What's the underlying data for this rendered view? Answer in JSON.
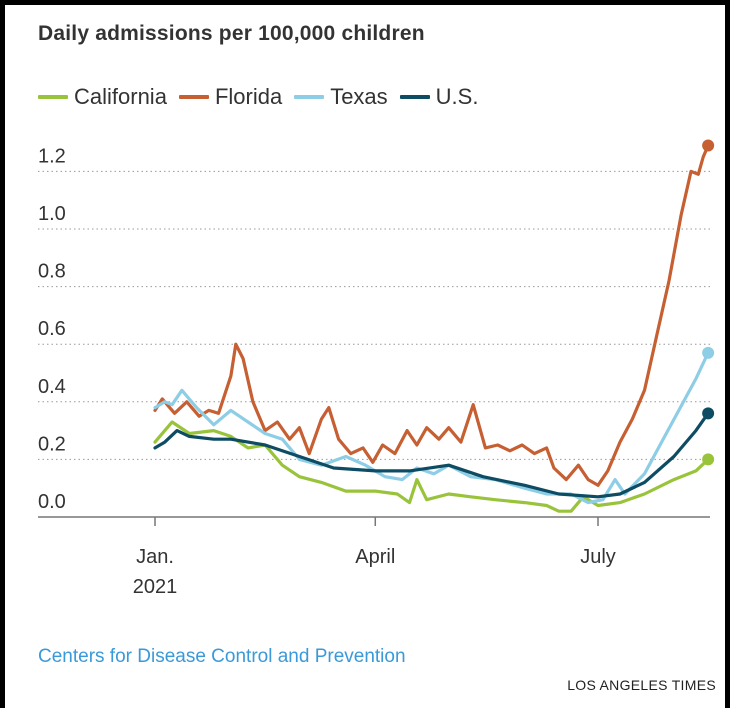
{
  "chart_data": {
    "type": "line",
    "title": "Daily admissions per 100,000 children",
    "xlabel": "",
    "ylabel": "",
    "ylim": [
      0,
      1.3
    ],
    "grid": true,
    "legend_position": "top",
    "x_ticks": [
      {
        "label": "Jan.",
        "sublabel": "2021",
        "date": "2021-01-01"
      },
      {
        "label": "April",
        "sublabel": "",
        "date": "2021-04-01"
      },
      {
        "label": "July",
        "sublabel": "",
        "date": "2021-07-01"
      }
    ],
    "y_ticks": [
      "0.0",
      "0.2",
      "0.4",
      "0.6",
      "0.8",
      "1.0",
      "1.2"
    ],
    "y_tick_values": [
      0,
      0.2,
      0.4,
      0.6,
      0.8,
      1.0,
      1.2
    ],
    "x_range": [
      "2021-01-01",
      "2021-08-20"
    ],
    "series": [
      {
        "name": "California",
        "color": "#9ac33c",
        "points": [
          [
            "2021-01-01",
            0.26
          ],
          [
            "2021-01-05",
            0.3
          ],
          [
            "2021-01-08",
            0.33
          ],
          [
            "2021-01-15",
            0.29
          ],
          [
            "2021-01-25",
            0.3
          ],
          [
            "2021-02-01",
            0.28
          ],
          [
            "2021-02-08",
            0.24
          ],
          [
            "2021-02-15",
            0.25
          ],
          [
            "2021-02-22",
            0.18
          ],
          [
            "2021-03-01",
            0.14
          ],
          [
            "2021-03-10",
            0.12
          ],
          [
            "2021-03-20",
            0.09
          ],
          [
            "2021-04-01",
            0.09
          ],
          [
            "2021-04-10",
            0.08
          ],
          [
            "2021-04-15",
            0.05
          ],
          [
            "2021-04-18",
            0.13
          ],
          [
            "2021-04-22",
            0.06
          ],
          [
            "2021-05-01",
            0.08
          ],
          [
            "2021-05-10",
            0.07
          ],
          [
            "2021-05-20",
            0.06
          ],
          [
            "2021-06-01",
            0.05
          ],
          [
            "2021-06-10",
            0.04
          ],
          [
            "2021-06-15",
            0.02
          ],
          [
            "2021-06-20",
            0.02
          ],
          [
            "2021-06-25",
            0.07
          ],
          [
            "2021-07-01",
            0.04
          ],
          [
            "2021-07-10",
            0.05
          ],
          [
            "2021-07-20",
            0.08
          ],
          [
            "2021-08-01",
            0.13
          ],
          [
            "2021-08-10",
            0.16
          ],
          [
            "2021-08-15",
            0.2
          ]
        ]
      },
      {
        "name": "Florida",
        "color": "#c65f32",
        "points": [
          [
            "2021-01-01",
            0.37
          ],
          [
            "2021-01-04",
            0.41
          ],
          [
            "2021-01-09",
            0.36
          ],
          [
            "2021-01-14",
            0.4
          ],
          [
            "2021-01-19",
            0.35
          ],
          [
            "2021-01-23",
            0.37
          ],
          [
            "2021-01-27",
            0.36
          ],
          [
            "2021-02-01",
            0.49
          ],
          [
            "2021-02-03",
            0.6
          ],
          [
            "2021-02-06",
            0.55
          ],
          [
            "2021-02-10",
            0.4
          ],
          [
            "2021-02-15",
            0.3
          ],
          [
            "2021-02-20",
            0.33
          ],
          [
            "2021-02-25",
            0.27
          ],
          [
            "2021-03-01",
            0.31
          ],
          [
            "2021-03-05",
            0.22
          ],
          [
            "2021-03-10",
            0.34
          ],
          [
            "2021-03-13",
            0.38
          ],
          [
            "2021-03-17",
            0.27
          ],
          [
            "2021-03-22",
            0.22
          ],
          [
            "2021-03-27",
            0.24
          ],
          [
            "2021-03-31",
            0.19
          ],
          [
            "2021-04-04",
            0.25
          ],
          [
            "2021-04-09",
            0.22
          ],
          [
            "2021-04-14",
            0.3
          ],
          [
            "2021-04-18",
            0.25
          ],
          [
            "2021-04-22",
            0.31
          ],
          [
            "2021-04-27",
            0.27
          ],
          [
            "2021-05-01",
            0.31
          ],
          [
            "2021-05-06",
            0.26
          ],
          [
            "2021-05-11",
            0.39
          ],
          [
            "2021-05-16",
            0.24
          ],
          [
            "2021-05-21",
            0.25
          ],
          [
            "2021-05-26",
            0.23
          ],
          [
            "2021-05-31",
            0.25
          ],
          [
            "2021-06-05",
            0.22
          ],
          [
            "2021-06-10",
            0.24
          ],
          [
            "2021-06-13",
            0.17
          ],
          [
            "2021-06-18",
            0.13
          ],
          [
            "2021-06-23",
            0.18
          ],
          [
            "2021-06-27",
            0.13
          ],
          [
            "2021-07-01",
            0.11
          ],
          [
            "2021-07-05",
            0.16
          ],
          [
            "2021-07-10",
            0.26
          ],
          [
            "2021-07-15",
            0.34
          ],
          [
            "2021-07-20",
            0.44
          ],
          [
            "2021-07-25",
            0.63
          ],
          [
            "2021-07-30",
            0.82
          ],
          [
            "2021-08-04",
            1.05
          ],
          [
            "2021-08-08",
            1.2
          ],
          [
            "2021-08-11",
            1.19
          ],
          [
            "2021-08-13",
            1.25
          ],
          [
            "2021-08-15",
            1.29
          ]
        ]
      },
      {
        "name": "Texas",
        "color": "#8ecde6",
        "points": [
          [
            "2021-01-01",
            0.38
          ],
          [
            "2021-01-05",
            0.4
          ],
          [
            "2021-01-08",
            0.39
          ],
          [
            "2021-01-12",
            0.44
          ],
          [
            "2021-01-18",
            0.38
          ],
          [
            "2021-01-25",
            0.32
          ],
          [
            "2021-02-01",
            0.37
          ],
          [
            "2021-02-08",
            0.33
          ],
          [
            "2021-02-15",
            0.29
          ],
          [
            "2021-02-22",
            0.27
          ],
          [
            "2021-03-01",
            0.2
          ],
          [
            "2021-03-10",
            0.18
          ],
          [
            "2021-03-20",
            0.21
          ],
          [
            "2021-03-28",
            0.18
          ],
          [
            "2021-04-05",
            0.14
          ],
          [
            "2021-04-12",
            0.13
          ],
          [
            "2021-04-18",
            0.17
          ],
          [
            "2021-04-25",
            0.15
          ],
          [
            "2021-05-01",
            0.18
          ],
          [
            "2021-05-10",
            0.14
          ],
          [
            "2021-05-20",
            0.13
          ],
          [
            "2021-06-01",
            0.1
          ],
          [
            "2021-06-10",
            0.08
          ],
          [
            "2021-06-20",
            0.08
          ],
          [
            "2021-06-27",
            0.05
          ],
          [
            "2021-07-03",
            0.06
          ],
          [
            "2021-07-08",
            0.13
          ],
          [
            "2021-07-12",
            0.08
          ],
          [
            "2021-07-20",
            0.15
          ],
          [
            "2021-07-27",
            0.26
          ],
          [
            "2021-08-03",
            0.37
          ],
          [
            "2021-08-10",
            0.48
          ],
          [
            "2021-08-15",
            0.57
          ]
        ]
      },
      {
        "name": "U.S.",
        "color": "#0d4c63",
        "points": [
          [
            "2021-01-01",
            0.24
          ],
          [
            "2021-01-05",
            0.26
          ],
          [
            "2021-01-10",
            0.3
          ],
          [
            "2021-01-15",
            0.28
          ],
          [
            "2021-01-25",
            0.27
          ],
          [
            "2021-02-01",
            0.27
          ],
          [
            "2021-02-15",
            0.25
          ],
          [
            "2021-03-01",
            0.21
          ],
          [
            "2021-03-15",
            0.17
          ],
          [
            "2021-04-01",
            0.16
          ],
          [
            "2021-04-15",
            0.16
          ],
          [
            "2021-05-01",
            0.18
          ],
          [
            "2021-05-15",
            0.14
          ],
          [
            "2021-06-01",
            0.11
          ],
          [
            "2021-06-15",
            0.08
          ],
          [
            "2021-07-01",
            0.07
          ],
          [
            "2021-07-10",
            0.08
          ],
          [
            "2021-07-20",
            0.12
          ],
          [
            "2021-08-01",
            0.21
          ],
          [
            "2021-08-10",
            0.3
          ],
          [
            "2021-08-15",
            0.36
          ]
        ]
      }
    ]
  },
  "source": "Centers for Disease Control and Prevention",
  "credit": "LOS ANGELES TIMES"
}
